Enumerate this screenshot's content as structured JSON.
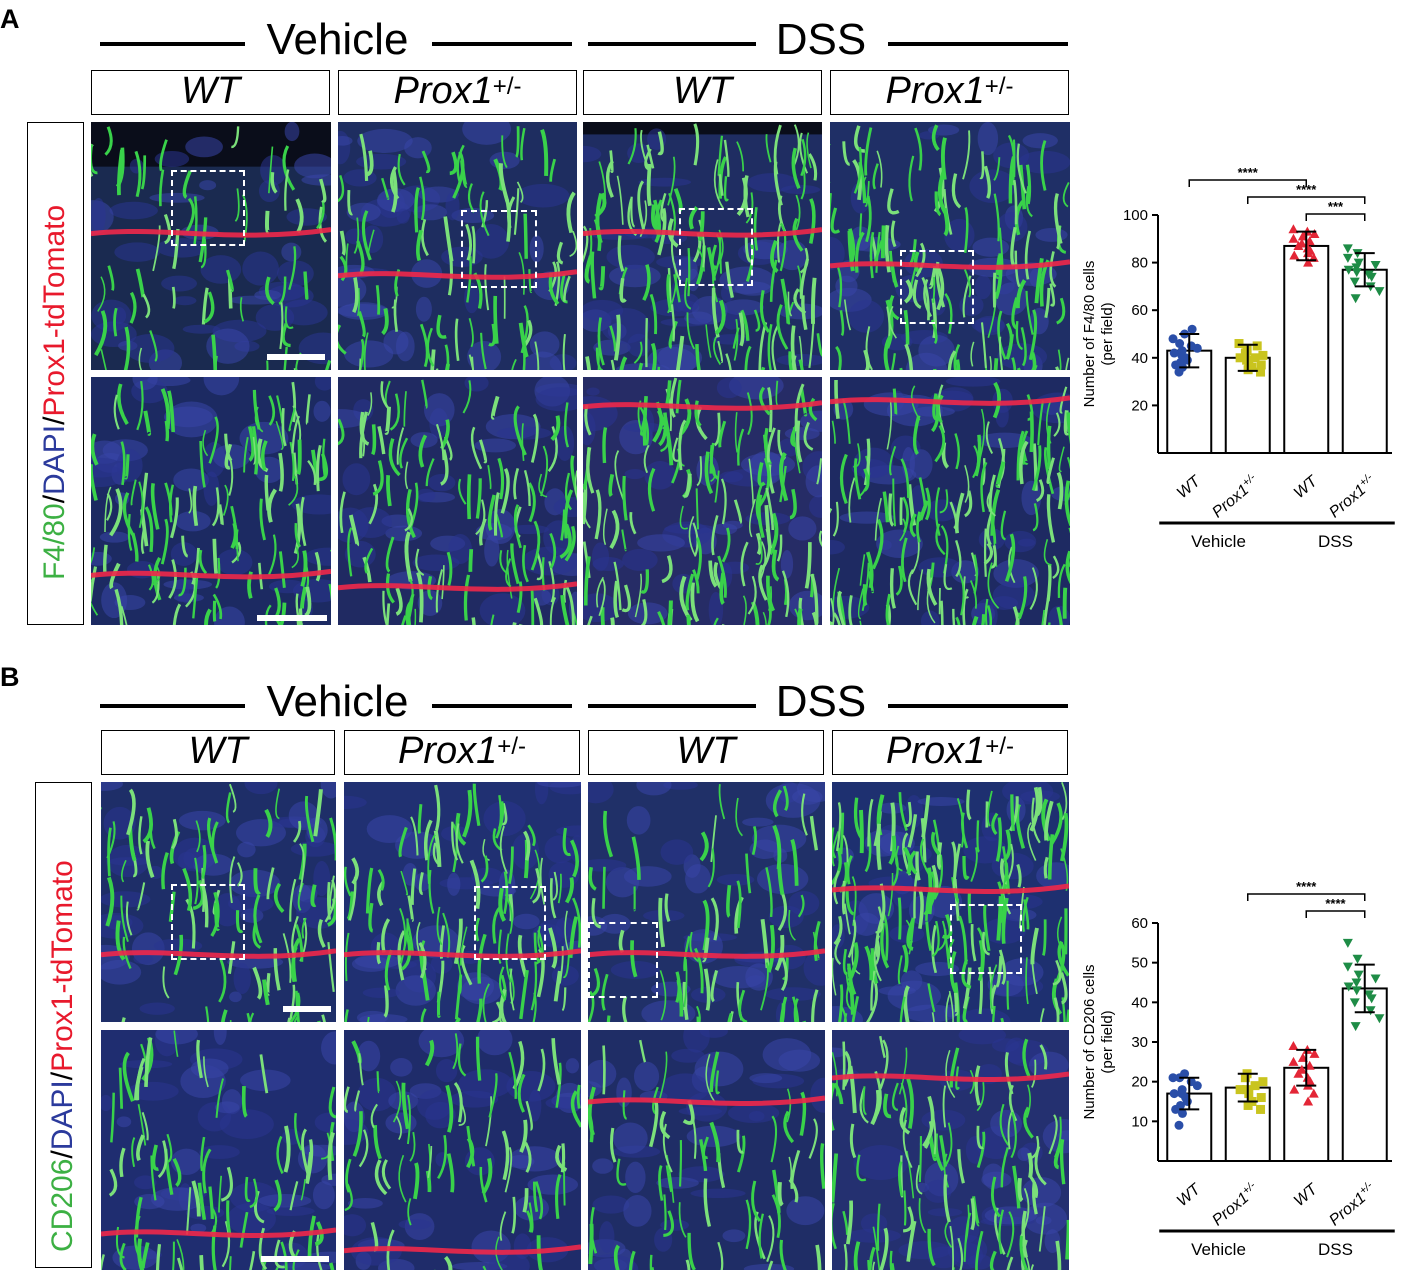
{
  "panels": [
    {
      "letter": "A",
      "conditions": [
        "Vehicle",
        "DSS"
      ],
      "genotypes": [
        {
          "name": "WT",
          "sup": ""
        },
        {
          "name": "Prox1",
          "sup": "+/-"
        },
        {
          "name": "WT",
          "sup": ""
        },
        {
          "name": "Prox1",
          "sup": "+/-"
        }
      ],
      "stain": {
        "marker": "F4/80",
        "sep1": "/",
        "nuclear": "DAPI",
        "sep2": "/",
        "reporter": "Prox1-tdTomato"
      },
      "colors": {
        "marker": "#3cb043",
        "nuclear": "#2b3a9c",
        "reporter": "#e8192c"
      },
      "chart_data": {
        "type": "bar",
        "ylabel": "Number of F4/80 cells",
        "ylabel2": "(per field)",
        "ylim": [
          0,
          100
        ],
        "yticks": [
          20,
          40,
          60,
          80,
          100
        ],
        "categories": [
          "WT",
          "Prox1+/-",
          "WT",
          "Prox1+/-"
        ],
        "category_labels": [
          {
            "main": "WT",
            "sup": ""
          },
          {
            "main": "Prox1",
            "sup": "+/-"
          },
          {
            "main": "WT",
            "sup": ""
          },
          {
            "main": "Prox1",
            "sup": "+/-"
          }
        ],
        "groups": [
          {
            "name": "Vehicle",
            "categories": [
              0,
              1
            ]
          },
          {
            "name": "DSS",
            "categories": [
              2,
              3
            ]
          }
        ],
        "values": [
          43,
          40,
          87,
          77
        ],
        "sd": [
          7,
          5.5,
          6,
          7
        ],
        "point_colors": [
          "#2a4ea8",
          "#c9c41e",
          "#e32636",
          "#1e8c46"
        ],
        "point_shapes": [
          "circle",
          "square",
          "triangle-up",
          "triangle-down"
        ],
        "points": [
          [
            34,
            36,
            37,
            38,
            39,
            40,
            41,
            42,
            43,
            44,
            45,
            46,
            48,
            50,
            52
          ],
          [
            34,
            35,
            36,
            37,
            38,
            39,
            40,
            40,
            41,
            42,
            43,
            44,
            45,
            46
          ],
          [
            80,
            82,
            83,
            84,
            85,
            86,
            87,
            88,
            89,
            90,
            91,
            92,
            93,
            94
          ],
          [
            65,
            68,
            70,
            72,
            74,
            75,
            76,
            77,
            78,
            79,
            80,
            82,
            84,
            86
          ]
        ],
        "significance": [
          {
            "from": 0,
            "to": 2,
            "label": "****"
          },
          {
            "from": 1,
            "to": 3,
            "label": "****"
          },
          {
            "from": 2,
            "to": 3,
            "label": "***"
          }
        ]
      }
    },
    {
      "letter": "B",
      "conditions": [
        "Vehicle",
        "DSS"
      ],
      "genotypes": [
        {
          "name": "WT",
          "sup": ""
        },
        {
          "name": "Prox1",
          "sup": "+/-"
        },
        {
          "name": "WT",
          "sup": ""
        },
        {
          "name": "Prox1",
          "sup": "+/-"
        }
      ],
      "stain": {
        "marker": "CD206",
        "sep1": "/",
        "nuclear": "DAPI",
        "sep2": "/",
        "reporter": "Prox1-tdTomato"
      },
      "colors": {
        "marker": "#3cb043",
        "nuclear": "#2b3a9c",
        "reporter": "#e8192c"
      },
      "chart_data": {
        "type": "bar",
        "ylabel": "Number of CD206 cells",
        "ylabel2": "(per field)",
        "ylim": [
          0,
          60
        ],
        "yticks": [
          10,
          20,
          30,
          40,
          50,
          60
        ],
        "categories": [
          "WT",
          "Prox1+/-",
          "WT",
          "Prox1+/-"
        ],
        "category_labels": [
          {
            "main": "WT",
            "sup": ""
          },
          {
            "main": "Prox1",
            "sup": "+/-"
          },
          {
            "main": "WT",
            "sup": ""
          },
          {
            "main": "Prox1",
            "sup": "+/-"
          }
        ],
        "groups": [
          {
            "name": "Vehicle",
            "categories": [
              0,
              1
            ]
          },
          {
            "name": "DSS",
            "categories": [
              2,
              3
            ]
          }
        ],
        "values": [
          17,
          18.5,
          23.5,
          43.5
        ],
        "sd": [
          4,
          3.5,
          4.5,
          6
        ],
        "point_colors": [
          "#2a4ea8",
          "#c9c41e",
          "#e32636",
          "#1e8c46"
        ],
        "point_shapes": [
          "circle",
          "square",
          "triangle-up",
          "triangle-down"
        ],
        "points": [
          [
            9,
            12,
            13,
            14,
            15,
            16,
            17,
            17,
            18,
            19,
            20,
            21,
            21,
            22
          ],
          [
            13,
            14,
            15,
            16,
            17,
            18,
            18,
            19,
            20,
            21,
            22
          ],
          [
            15,
            17,
            18,
            19,
            20,
            21,
            22,
            23,
            24,
            25,
            26,
            27,
            28,
            29
          ],
          [
            34,
            36,
            38,
            40,
            41,
            42,
            43,
            44,
            45,
            46,
            47,
            49,
            51,
            55
          ]
        ],
        "significance": [
          {
            "from": 1,
            "to": 3,
            "label": "****"
          },
          {
            "from": 2,
            "to": 3,
            "label": "****"
          }
        ]
      }
    }
  ]
}
